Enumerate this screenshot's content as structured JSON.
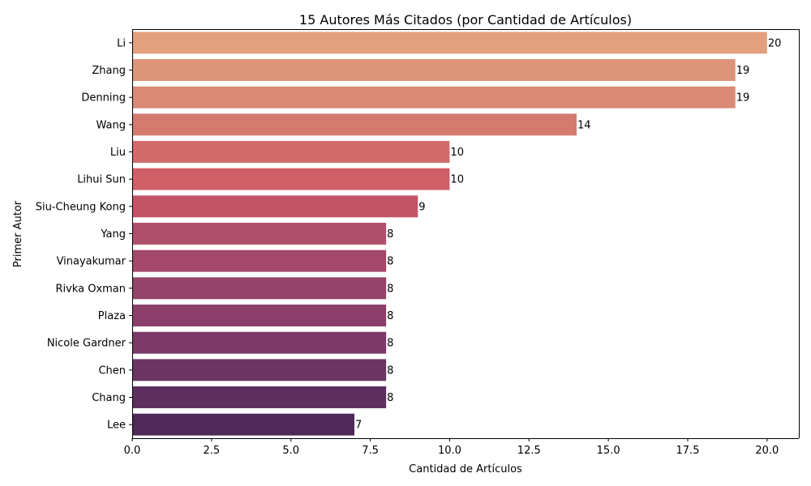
{
  "chart_data": {
    "type": "bar",
    "orientation": "horizontal",
    "title": "15 Autores Más Citados (por Cantidad de Artículos)",
    "xlabel": "Cantidad de Artículos",
    "ylabel": "Primer Autor",
    "categories": [
      "Li",
      "Zhang",
      "Denning",
      "Wang",
      "Liu",
      "Lihui Sun",
      "Siu-Cheung Kong",
      "Yang",
      "Vinayakumar",
      "Rivka Oxman",
      "Plaza",
      "Nicole Gardner",
      "Chen",
      "Chang",
      "Lee"
    ],
    "values": [
      20,
      19,
      19,
      14,
      10,
      10,
      9,
      8,
      8,
      8,
      8,
      8,
      8,
      8,
      7
    ],
    "data_labels": [
      "20",
      "19",
      "19",
      "14",
      "10",
      "10",
      "9",
      "8",
      "8",
      "8",
      "8",
      "8",
      "8",
      "8",
      "7"
    ],
    "xlim": [
      0,
      21
    ],
    "xticks": [
      0,
      2.5,
      5,
      7.5,
      10,
      12.5,
      15,
      17.5,
      20
    ],
    "xtick_labels": [
      "0.0",
      "2.5",
      "5.0",
      "7.5",
      "10.0",
      "12.5",
      "15.0",
      "17.5",
      "20.0"
    ],
    "colors": [
      "#e3a07e",
      "#dc957a",
      "#d98a76",
      "#d47a6e",
      "#d16c6a",
      "#cf6068",
      "#c25466",
      "#b04f6b",
      "#a3476b",
      "#954469",
      "#8c3f6b",
      "#7b3a68",
      "#6b3462",
      "#5c2f5f",
      "#4f2a58"
    ],
    "grid": false,
    "legend": "none"
  }
}
